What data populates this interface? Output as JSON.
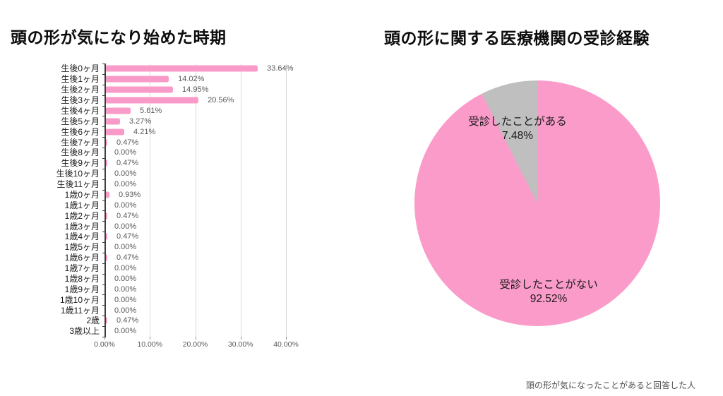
{
  "chart_data": [
    {
      "type": "bar",
      "orientation": "horizontal",
      "title": "頭の形が気になり始めた時期",
      "categories": [
        "生後0ヶ月",
        "生後1ヶ月",
        "生後2ヶ月",
        "生後3ヶ月",
        "生後4ヶ月",
        "生後5ヶ月",
        "生後6ヶ月",
        "生後7ヶ月",
        "生後8ヶ月",
        "生後9ヶ月",
        "生後10ヶ月",
        "生後11ヶ月",
        "1歳0ヶ月",
        "1歳1ヶ月",
        "1歳2ヶ月",
        "1歳3ヶ月",
        "1歳4ヶ月",
        "1歳5ヶ月",
        "1歳6ヶ月",
        "1歳7ヶ月",
        "1歳8ヶ月",
        "1歳9ヶ月",
        "1歳10ヶ月",
        "1歳11ヶ月",
        "2歳",
        "3歳以上"
      ],
      "values": [
        33.64,
        14.02,
        14.95,
        20.56,
        5.61,
        3.27,
        4.21,
        0.47,
        0.0,
        0.47,
        0.0,
        0.0,
        0.93,
        0.0,
        0.47,
        0.0,
        0.47,
        0.0,
        0.47,
        0.0,
        0.0,
        0.0,
        0.0,
        0.0,
        0.47,
        0.0
      ],
      "value_labels": [
        "33.64%",
        "14.02%",
        "14.95%",
        "20.56%",
        "5.61%",
        "3.27%",
        "4.21%",
        "0.47%",
        "0.00%",
        "0.47%",
        "0.00%",
        "0.00%",
        "0.93%",
        "0.00%",
        "0.47%",
        "0.00%",
        "0.47%",
        "0.00%",
        "0.47%",
        "0.00%",
        "0.00%",
        "0.00%",
        "0.00%",
        "0.00%",
        "0.47%",
        "0.00%"
      ],
      "x_axis": {
        "tick_labels": [
          "0.00%",
          "10.00%",
          "20.00%",
          "30.00%",
          "40.00%"
        ],
        "min": 0,
        "max": 40,
        "grid": true
      },
      "colors": {
        "bar": "#F99BC8",
        "gridline": "#D9D9D9",
        "axis_line": "#3D3D3D",
        "category_label": "#1A1A1A",
        "value_label": "#595959",
        "tick_label": "#595959"
      }
    },
    {
      "type": "pie",
      "title": "頭の形に関する医療機関の受診経験",
      "start_angle_deg": 0,
      "direction": "clockwise",
      "slices": [
        {
          "label": "受診したことがない",
          "value": 92.52,
          "pct_label": "92.52%",
          "color": "#FB9BC9"
        },
        {
          "label": "受診したことがある",
          "value": 7.48,
          "pct_label": "7.48%",
          "color": "#BFBFBF"
        }
      ],
      "label_color": "#1A1A1A"
    }
  ],
  "footnote": "頭の形が気になったことがあると回答した人"
}
